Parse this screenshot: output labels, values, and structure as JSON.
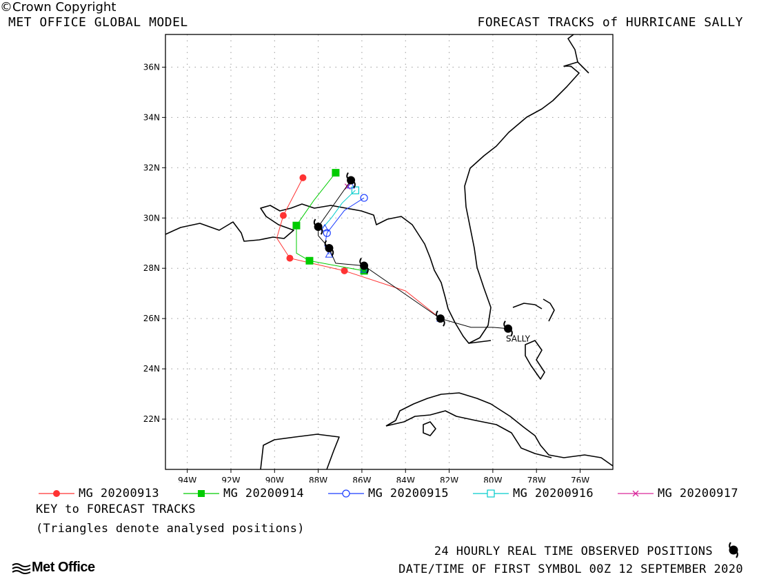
{
  "header": {
    "left_title": "MET OFFICE GLOBAL MODEL",
    "right_title": "FORECAST TRACKS of HURRICANE SALLY"
  },
  "map": {
    "lon_range": [
      -95.0,
      -74.5
    ],
    "lat_range": [
      20.0,
      37.3
    ],
    "lon_ticks": [
      {
        "value": -94,
        "label": "94W"
      },
      {
        "value": -92,
        "label": "92W"
      },
      {
        "value": -90,
        "label": "90W"
      },
      {
        "value": -88,
        "label": "88W"
      },
      {
        "value": -86,
        "label": "86W"
      },
      {
        "value": -84,
        "label": "84W"
      },
      {
        "value": -82,
        "label": "82W"
      },
      {
        "value": -80,
        "label": "80W"
      },
      {
        "value": -78,
        "label": "78W"
      },
      {
        "value": -76,
        "label": "76W"
      }
    ],
    "lat_ticks": [
      {
        "value": 22,
        "label": "22N"
      },
      {
        "value": 24,
        "label": "24N"
      },
      {
        "value": 26,
        "label": "26N"
      },
      {
        "value": 28,
        "label": "28N"
      },
      {
        "value": 30,
        "label": "30N"
      },
      {
        "value": 32,
        "label": "32N"
      },
      {
        "value": 34,
        "label": "34N"
      },
      {
        "value": 36,
        "label": "36N"
      }
    ],
    "grid": "dotted",
    "storm_label": {
      "text": "SALLY",
      "lon": -79.4,
      "lat": 25.2
    },
    "observed_positions": [
      {
        "lon": -79.3,
        "lat": 25.6
      },
      {
        "lon": -82.4,
        "lat": 26.0
      },
      {
        "lon": -85.9,
        "lat": 28.1
      },
      {
        "lon": -87.5,
        "lat": 28.8
      },
      {
        "lon": -88.0,
        "lat": 29.65
      },
      {
        "lon": -86.5,
        "lat": 31.5
      }
    ],
    "observed_track": [
      {
        "lon": -79.3,
        "lat": 25.6
      },
      {
        "lon": -80.0,
        "lat": 25.65
      },
      {
        "lon": -81.0,
        "lat": 25.65
      },
      {
        "lon": -82.4,
        "lat": 26.0
      },
      {
        "lon": -85.9,
        "lat": 28.1
      },
      {
        "lon": -87.2,
        "lat": 28.2
      },
      {
        "lon": -87.5,
        "lat": 28.8
      },
      {
        "lon": -88.0,
        "lat": 29.3
      },
      {
        "lon": -88.0,
        "lat": 29.65
      },
      {
        "lon": -86.5,
        "lat": 31.5
      }
    ],
    "forecast_tracks": [
      {
        "name": "MG 20200913",
        "color": "#ff3333",
        "marker": "circle-filled",
        "points": [
          {
            "lon": -82.4,
            "lat": 26.0
          },
          {
            "lon": -84.0,
            "lat": 27.1
          },
          {
            "lon": -86.8,
            "lat": 27.9
          },
          {
            "lon": -89.3,
            "lat": 28.4
          },
          {
            "lon": -89.9,
            "lat": 29.2
          },
          {
            "lon": -89.6,
            "lat": 30.1
          },
          {
            "lon": -89.0,
            "lat": 31.1
          },
          {
            "lon": -88.7,
            "lat": 31.6
          }
        ],
        "markers": [
          {
            "lon": -82.4,
            "lat": 26.0
          },
          {
            "lon": -86.8,
            "lat": 27.9
          },
          {
            "lon": -89.3,
            "lat": 28.4
          },
          {
            "lon": -89.6,
            "lat": 30.1
          },
          {
            "lon": -88.7,
            "lat": 31.6
          }
        ]
      },
      {
        "name": "MG 20200914",
        "color": "#00cc00",
        "marker": "square-filled",
        "points": [
          {
            "lon": -85.9,
            "lat": 27.9
          },
          {
            "lon": -88.4,
            "lat": 28.3
          },
          {
            "lon": -89.0,
            "lat": 28.6
          },
          {
            "lon": -89.0,
            "lat": 29.7
          },
          {
            "lon": -88.2,
            "lat": 30.7
          },
          {
            "lon": -87.2,
            "lat": 31.8
          }
        ],
        "markers": [
          {
            "lon": -85.9,
            "lat": 27.9
          },
          {
            "lon": -88.4,
            "lat": 28.3
          },
          {
            "lon": -89.0,
            "lat": 29.7
          },
          {
            "lon": -87.2,
            "lat": 31.8
          }
        ]
      },
      {
        "name": "MG 20200915",
        "color": "#1a3cff",
        "marker": "circle-open",
        "points": [
          {
            "lon": -87.5,
            "lat": 28.55
          },
          {
            "lon": -87.7,
            "lat": 28.9
          },
          {
            "lon": -87.6,
            "lat": 29.4
          },
          {
            "lon": -86.8,
            "lat": 30.3
          },
          {
            "lon": -85.9,
            "lat": 30.8
          }
        ],
        "markers": [
          {
            "lon": -87.6,
            "lat": 29.4
          },
          {
            "lon": -85.9,
            "lat": 30.8
          }
        ]
      },
      {
        "name": "MG 20200916",
        "color": "#00cccc",
        "marker": "square-open",
        "points": [
          {
            "lon": -87.8,
            "lat": 29.6
          },
          {
            "lon": -87.4,
            "lat": 30.0
          },
          {
            "lon": -86.9,
            "lat": 30.6
          },
          {
            "lon": -86.3,
            "lat": 31.1
          }
        ],
        "markers": [
          {
            "lon": -86.3,
            "lat": 31.1
          }
        ]
      },
      {
        "name": "MG 20200917",
        "color": "#d9279b",
        "marker": "cross",
        "points": [
          {
            "lon": -86.5,
            "lat": 31.5
          },
          {
            "lon": -86.65,
            "lat": 31.25
          }
        ],
        "markers": [
          {
            "lon": -86.65,
            "lat": 31.25
          }
        ]
      }
    ],
    "analysed_triangles": [
      {
        "lon": -82.4,
        "lat": 26.0
      },
      {
        "lon": -85.9,
        "lat": 27.95
      },
      {
        "lon": -87.5,
        "lat": 28.55
      },
      {
        "lon": -87.7,
        "lat": 29.6
      },
      {
        "lon": -86.5,
        "lat": 31.3
      }
    ]
  },
  "legend": {
    "key_title": "KEY to FORECAST TRACKS",
    "key_note": "(Triangles denote analysed positions)"
  },
  "footer": {
    "brand": "Met Office",
    "copyright": "Crown Copyright",
    "observed_text": "24 HOURLY REAL TIME OBSERVED POSITIONS",
    "first_symbol_text": "DATE/TIME OF FIRST SYMBOL 00Z 12 SEPTEMBER 2020"
  }
}
